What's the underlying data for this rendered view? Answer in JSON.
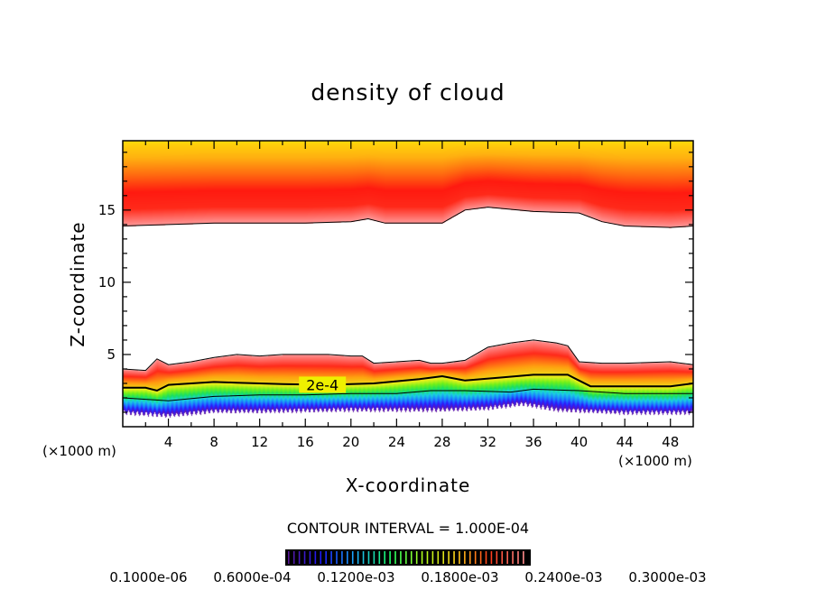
{
  "chart_data": {
    "type": "heatmap",
    "title": "density of cloud",
    "xlabel": "X-coordinate",
    "ylabel": "Z-coordinate",
    "x_unit": "(×1000 m)",
    "y_unit": "(×1000 m)",
    "xlim": [
      0,
      50
    ],
    "ylim": [
      0,
      19.8
    ],
    "xticks": [
      4,
      8,
      12,
      16,
      20,
      24,
      28,
      32,
      36,
      40,
      44,
      48
    ],
    "yticks": [
      5,
      10,
      15
    ],
    "contour_interval_text": "CONTOUR INTERVAL = 1.000E-04",
    "contour_label": "2e-4",
    "colorbar_labels": [
      "0.1000e-06",
      "0.6000e-04",
      "0.1200e-03",
      "0.1800e-03",
      "0.2400e-03",
      "0.3000e-03"
    ],
    "colorbar_colors": [
      "#5a1a9a",
      "#1a1aff",
      "#1ab0ff",
      "#1aff6a",
      "#b0ff1a",
      "#ffd21a",
      "#ff3a1a",
      "#ff8a8a"
    ],
    "upper_layer_base": {
      "x": [
        0,
        4,
        8,
        12,
        16,
        20,
        21.5,
        23,
        28,
        30,
        32,
        36,
        40,
        42,
        44,
        48,
        50
      ],
      "z": [
        13.9,
        14.0,
        14.1,
        14.1,
        14.1,
        14.2,
        14.4,
        14.1,
        14.1,
        15.0,
        15.2,
        14.9,
        14.8,
        14.2,
        13.9,
        13.8,
        13.9
      ]
    },
    "lower_layer_top": {
      "x": [
        0,
        2,
        3,
        4,
        6,
        8,
        10,
        12,
        14,
        16,
        18,
        20,
        21,
        22,
        24,
        26,
        27,
        28,
        30,
        32,
        34,
        36,
        38,
        39,
        40,
        42,
        44,
        48,
        50
      ],
      "z": [
        4.0,
        3.9,
        4.7,
        4.3,
        4.5,
        4.8,
        5.0,
        4.9,
        5.0,
        5.0,
        5.0,
        4.9,
        4.9,
        4.4,
        4.5,
        4.6,
        4.4,
        4.4,
        4.6,
        5.5,
        5.8,
        6.0,
        5.8,
        5.6,
        4.5,
        4.4,
        4.4,
        4.5,
        4.3
      ]
    },
    "contour_2e4": {
      "x": [
        0,
        2,
        3,
        4,
        6,
        8,
        10,
        14,
        18,
        22,
        26,
        28,
        30,
        33,
        36,
        39,
        41,
        44,
        48,
        50
      ],
      "z": [
        2.7,
        2.7,
        2.5,
        2.9,
        3.0,
        3.1,
        3.05,
        2.95,
        2.9,
        3.0,
        3.3,
        3.5,
        3.2,
        3.4,
        3.6,
        3.6,
        2.8,
        2.8,
        2.8,
        3.0
      ]
    },
    "contour_1e4": {
      "x": [
        0,
        4,
        8,
        12,
        16,
        20,
        24,
        27,
        30,
        34,
        36,
        40,
        44,
        48,
        50
      ],
      "z": [
        2.0,
        1.8,
        2.1,
        2.2,
        2.2,
        2.3,
        2.3,
        2.5,
        2.5,
        2.4,
        2.6,
        2.5,
        2.3,
        2.3,
        2.3
      ]
    },
    "lower_layer_base": {
      "x": [
        0,
        4,
        8,
        12,
        20,
        28,
        32,
        35,
        38,
        44,
        50
      ],
      "z": [
        1.0,
        0.8,
        1.1,
        1.1,
        1.2,
        1.2,
        1.3,
        1.6,
        1.2,
        1.0,
        1.0
      ]
    }
  }
}
